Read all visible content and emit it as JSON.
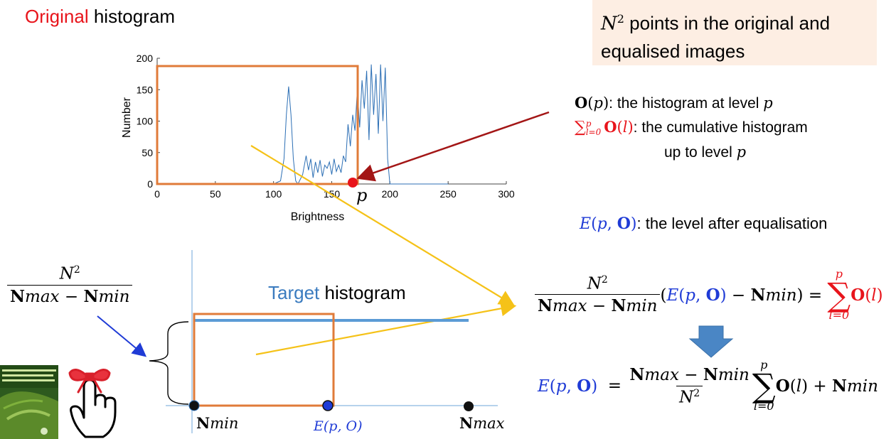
{
  "titles": {
    "original_word": "Original",
    "histogram_word": "histogram",
    "target_word": "Target",
    "target_hist_word": "histogram"
  },
  "note_box": {
    "line1_tail": " points in the original and",
    "line2": "equalised images",
    "bg": "#fdeee3"
  },
  "definitions": {
    "o_text": ": the histogram at level ",
    "cum_text": ": the cumulative histogram",
    "cum_text2": "up to level ",
    "e_text": ": the level after equalisation"
  },
  "math": {
    "O": "O",
    "p": "p",
    "l": "l",
    "N": "N",
    "sq": "2",
    "E": "E",
    "max": "max",
    "min": "min",
    "sum": "∑",
    "l_eq_0": "l=0",
    "plus": "+",
    "minus": "−",
    "equals": "="
  },
  "axis_labels": {
    "nmin": "min",
    "nmax": "max",
    "e_label": "E(p, O)"
  },
  "colors": {
    "orange": "#e07b39",
    "yellow": "#f5c218",
    "darkred": "#a31616",
    "steelblue": "#5b9bd5",
    "navy": "#1f3bd6"
  },
  "icons": [
    "book-cover-icon",
    "finger-ribbon-icon",
    "down-arrow-icon"
  ],
  "chart_data": {
    "type": "line",
    "xlabel": "Brightness",
    "ylabel": "Number",
    "xlim": [
      0,
      300
    ],
    "ylim": [
      0,
      200
    ],
    "xticks": [
      0,
      50,
      100,
      150,
      200,
      250,
      300
    ],
    "yticks": [
      0,
      50,
      100,
      150,
      200
    ],
    "marker_label": "p",
    "marker_x": 168,
    "series": [
      {
        "x": [
          0,
          100,
          106,
          109,
          111,
          113,
          115,
          117,
          119,
          121,
          125,
          128,
          130,
          132,
          134,
          136,
          138,
          140,
          142,
          144,
          146,
          148,
          150,
          152,
          154,
          156,
          158,
          160,
          162,
          164,
          166,
          168,
          170,
          172,
          174,
          176,
          178,
          180,
          182,
          184,
          186,
          188,
          190,
          192,
          194,
          196,
          198,
          200,
          205,
          210,
          250
        ],
        "values": [
          0,
          0,
          5,
          40,
          110,
          155,
          110,
          40,
          5,
          0,
          15,
          45,
          22,
          40,
          10,
          35,
          18,
          38,
          12,
          30,
          25,
          35,
          15,
          40,
          20,
          30,
          18,
          45,
          35,
          95,
          60,
          110,
          85,
          150,
          90,
          165,
          120,
          180,
          70,
          190,
          110,
          175,
          80,
          190,
          100,
          185,
          40,
          0,
          0,
          0,
          0
        ]
      }
    ]
  }
}
